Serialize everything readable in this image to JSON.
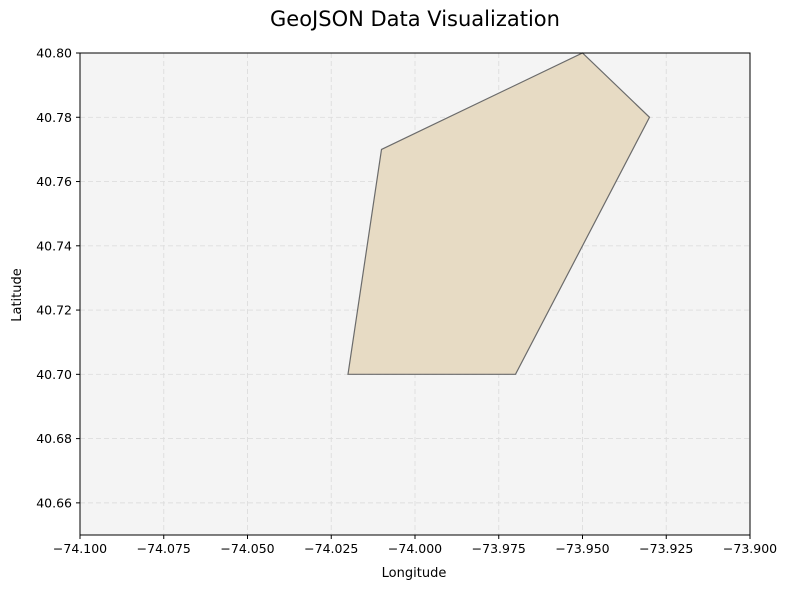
{
  "chart_data": {
    "type": "map",
    "title": "GeoJSON Data Visualization",
    "xlabel": "Longitude",
    "ylabel": "Latitude",
    "xlim": [
      -74.1,
      -73.9
    ],
    "ylim": [
      40.65,
      40.8
    ],
    "x_ticks": [
      -74.1,
      -74.075,
      -74.05,
      -74.025,
      -74.0,
      -73.975,
      -73.95,
      -73.925,
      -73.9
    ],
    "x_tick_labels": [
      "−74.100",
      "−74.075",
      "−74.050",
      "−74.025",
      "−74.000",
      "−73.975",
      "−73.950",
      "−73.925",
      "−73.900"
    ],
    "y_ticks": [
      40.66,
      40.68,
      40.7,
      40.72,
      40.74,
      40.76,
      40.78,
      40.8
    ],
    "y_tick_labels": [
      "40.66",
      "40.68",
      "40.70",
      "40.72",
      "40.74",
      "40.76",
      "40.78",
      "40.80"
    ],
    "grid": true,
    "polygons": [
      {
        "coordinates": [
          [
            -74.02,
            40.7
          ],
          [
            -73.97,
            40.7
          ],
          [
            -73.93,
            40.78
          ],
          [
            -73.95,
            40.8
          ],
          [
            -74.01,
            40.77
          ],
          [
            -74.02,
            40.7
          ]
        ],
        "fill_color": "#e7dbc4",
        "edge_color": "#6b6b6b"
      }
    ],
    "background_color": "#f4f4f4",
    "grid_color": "#dddddd"
  }
}
